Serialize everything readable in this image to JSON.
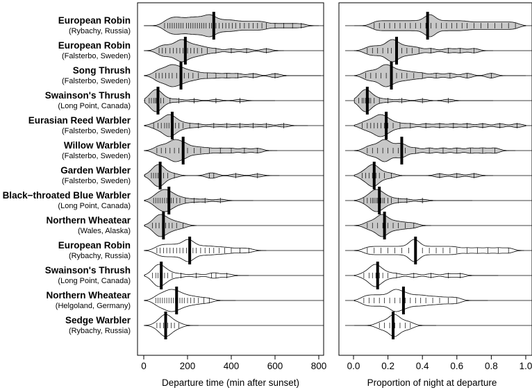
{
  "chart_data": {
    "type": "violin",
    "colors": {
      "filled": "#c8c8c8",
      "open": "#ffffff",
      "line": "#000000"
    },
    "species": [
      {
        "name": "European Robin",
        "location": "(Rybachy, Russia)",
        "fill": "gray",
        "time_median": 320,
        "prop_median": 0.43,
        "time_max": 800,
        "prop_max": 1.0,
        "time_peak": 300,
        "prop_peak": 0.45,
        "time_ticks": [
          95,
          110,
          120,
          130,
          140,
          150,
          160,
          170,
          180,
          195,
          205,
          215,
          225,
          235,
          245,
          255,
          265,
          275,
          285,
          300,
          310,
          330,
          345,
          360,
          375,
          390,
          405,
          420,
          440,
          460,
          480,
          500,
          520,
          540,
          560,
          600,
          640,
          680,
          720
        ],
        "prop_ticks": [
          0.12,
          0.15,
          0.18,
          0.21,
          0.24,
          0.27,
          0.3,
          0.33,
          0.36,
          0.39,
          0.42,
          0.45,
          0.48,
          0.51,
          0.54,
          0.57,
          0.6,
          0.63,
          0.66,
          0.7,
          0.74,
          0.78,
          0.82,
          0.86,
          0.9,
          0.94
        ]
      },
      {
        "name": "European Robin",
        "location": "(Falsterbo, Sweden)",
        "fill": "gray",
        "time_median": 190,
        "prop_median": 0.25,
        "time_max": 640,
        "prop_max": 0.81,
        "time_peak": 170,
        "prop_peak": 0.22,
        "time_ticks": [
          70,
          85,
          100,
          120,
          135,
          150,
          165,
          180,
          200,
          215,
          230,
          245,
          265,
          290,
          330,
          400,
          470,
          560
        ],
        "prop_ticks": [
          0.08,
          0.11,
          0.14,
          0.17,
          0.2,
          0.22,
          0.25,
          0.28,
          0.31,
          0.34,
          0.38,
          0.45,
          0.55,
          0.62,
          0.7
        ]
      },
      {
        "name": "Song Thrush",
        "location": "(Falsterbo, Sweden)",
        "fill": "gray",
        "time_median": 170,
        "prop_median": 0.22,
        "time_max": 810,
        "prop_max": 1.0,
        "time_peak": 130,
        "prop_peak": 0.18,
        "time_ticks": [
          55,
          70,
          85,
          100,
          115,
          130,
          150,
          165,
          185,
          205,
          225,
          250,
          290,
          330,
          380,
          430,
          500,
          600
        ],
        "prop_ticks": [
          0.07,
          0.1,
          0.13,
          0.16,
          0.19,
          0.22,
          0.25,
          0.28,
          0.31,
          0.35,
          0.4,
          0.48,
          0.56,
          0.66,
          0.8
        ]
      },
      {
        "name": "Swainson's Thrush",
        "location": "(Long Point, Canada)",
        "fill": "gray",
        "time_median": 65,
        "prop_median": 0.08,
        "time_max": 600,
        "prop_max": 0.81,
        "time_peak": 50,
        "prop_peak": 0.06,
        "time_ticks": [
          25,
          35,
          45,
          52,
          58,
          64,
          70,
          78,
          90,
          120,
          160,
          230,
          330,
          440
        ],
        "prop_ticks": [
          0.03,
          0.05,
          0.06,
          0.07,
          0.08,
          0.09,
          0.1,
          0.12,
          0.15,
          0.2,
          0.28,
          0.4,
          0.55
        ]
      },
      {
        "name": "Eurasian Reed Warbler",
        "location": "(Falsterbo, Sweden)",
        "fill": "gray",
        "time_median": 130,
        "prop_median": 0.19,
        "time_max": 750,
        "prop_max": 1.0,
        "time_peak": 110,
        "prop_peak": 0.15,
        "time_ticks": [
          45,
          65,
          80,
          95,
          105,
          115,
          125,
          135,
          145,
          160,
          180,
          210,
          250,
          320,
          380,
          440,
          500,
          560,
          640
        ],
        "prop_ticks": [
          0.05,
          0.08,
          0.1,
          0.12,
          0.14,
          0.16,
          0.18,
          0.2,
          0.23,
          0.27,
          0.33,
          0.42,
          0.5,
          0.58,
          0.66,
          0.75,
          0.85,
          0.95
        ]
      },
      {
        "name": "Willow Warbler",
        "location": "(Falsterbo, Sweden)",
        "fill": "gray",
        "time_median": 180,
        "prop_median": 0.28,
        "time_max": 610,
        "prop_max": 0.94,
        "time_peak": 140,
        "prop_peak": 0.18,
        "time_ticks": [
          60,
          80,
          100,
          120,
          140,
          160,
          180,
          200,
          230,
          260,
          300,
          350,
          400,
          460,
          520
        ],
        "prop_ticks": [
          0.08,
          0.11,
          0.14,
          0.17,
          0.2,
          0.23,
          0.26,
          0.3,
          0.36,
          0.44,
          0.52,
          0.6,
          0.68,
          0.75,
          0.82
        ]
      },
      {
        "name": "Garden Warbler",
        "location": "(Falsterbo, Sweden)",
        "fill": "gray",
        "time_median": 75,
        "prop_median": 0.12,
        "time_max": 620,
        "prop_max": 0.81,
        "time_peak": 70,
        "prop_peak": 0.11,
        "time_ticks": [
          35,
          45,
          55,
          65,
          75,
          90,
          110,
          140,
          300,
          320,
          420,
          520
        ],
        "prop_ticks": [
          0.05,
          0.07,
          0.09,
          0.11,
          0.13,
          0.15,
          0.18,
          0.22,
          0.5,
          0.6,
          0.7
        ]
      },
      {
        "name": "Black−throated Blue Warbler",
        "location": "(Long Point, Canada)",
        "fill": "gray",
        "time_median": 115,
        "prop_median": 0.15,
        "time_max": 500,
        "prop_max": 0.69,
        "time_peak": 90,
        "prop_peak": 0.12,
        "time_ticks": [
          45,
          55,
          65,
          75,
          85,
          95,
          105,
          115,
          125,
          135,
          150,
          165,
          190,
          230,
          280,
          350
        ],
        "prop_ticks": [
          0.06,
          0.08,
          0.1,
          0.11,
          0.12,
          0.13,
          0.14,
          0.15,
          0.16,
          0.17,
          0.18,
          0.2,
          0.22,
          0.26,
          0.31,
          0.4
        ]
      },
      {
        "name": "Northern Wheatear",
        "location": "(Wales, Alaska)",
        "fill": "gray",
        "time_median": 90,
        "prop_median": 0.18,
        "time_max": 240,
        "prop_max": 0.45,
        "time_peak": 70,
        "prop_peak": 0.16,
        "time_ticks": [
          40,
          55,
          70,
          85,
          100,
          115,
          130,
          150,
          180
        ],
        "prop_ticks": [
          0.08,
          0.11,
          0.14,
          0.17,
          0.2,
          0.23,
          0.26,
          0.3,
          0.35
        ]
      },
      {
        "name": "European Robin",
        "location": "(Rybachy, Russia)",
        "fill": "white",
        "time_median": 210,
        "prop_median": 0.36,
        "time_max": 560,
        "prop_max": 0.99,
        "time_peak": 200,
        "prop_peak": 0.35,
        "time_ticks": [
          60,
          75,
          90,
          105,
          120,
          135,
          150,
          165,
          180,
          195,
          210,
          225,
          240,
          260,
          280,
          300,
          320,
          345,
          370,
          400,
          440,
          480
        ],
        "prop_ticks": [
          0.08,
          0.12,
          0.16,
          0.2,
          0.24,
          0.28,
          0.32,
          0.36,
          0.4,
          0.44,
          0.48,
          0.52,
          0.56,
          0.6,
          0.66,
          0.72,
          0.78,
          0.84,
          0.9
        ]
      },
      {
        "name": "Swainson's Thrush",
        "location": "(Long Point, Canada)",
        "fill": "white",
        "time_median": 80,
        "prop_median": 0.14,
        "time_max": 480,
        "prop_max": 0.84,
        "time_peak": 60,
        "prop_peak": 0.12,
        "time_ticks": [
          40,
          55,
          65,
          75,
          85,
          95,
          110,
          130,
          170,
          240,
          310,
          330,
          380
        ],
        "prop_ticks": [
          0.06,
          0.09,
          0.11,
          0.13,
          0.15,
          0.17,
          0.2,
          0.25,
          0.35,
          0.45,
          0.55,
          0.62
        ]
      },
      {
        "name": "Northern Wheatear",
        "location": "(Helgoland, Germany)",
        "fill": "white",
        "time_median": 150,
        "prop_median": 0.29,
        "time_max": 420,
        "prop_max": 0.78,
        "time_peak": 120,
        "prop_peak": 0.24,
        "time_ticks": [
          55,
          65,
          75,
          85,
          95,
          105,
          115,
          125,
          135,
          145,
          155,
          165,
          175,
          185,
          200,
          215,
          230,
          250,
          275,
          300
        ],
        "prop_ticks": [
          0.06,
          0.09,
          0.12,
          0.15,
          0.18,
          0.21,
          0.24,
          0.27,
          0.3,
          0.33,
          0.36,
          0.39,
          0.42,
          0.46,
          0.5,
          0.55,
          0.6
        ]
      },
      {
        "name": "Sedge Warbler",
        "location": "(Rybachy, Russia)",
        "fill": "white",
        "time_median": 100,
        "prop_median": 0.23,
        "time_max": 250,
        "prop_max": 0.48,
        "time_peak": 100,
        "prop_peak": 0.24,
        "time_ticks": [
          60,
          75,
          90,
          100,
          110,
          125,
          140,
          160
        ],
        "prop_ticks": [
          0.15,
          0.18,
          0.21,
          0.24,
          0.27,
          0.3,
          0.33
        ]
      }
    ],
    "panels": [
      {
        "xlabel": "Departure time (min after sunset)",
        "xlim": [
          0,
          820
        ],
        "ticks": [
          0,
          200,
          400,
          600,
          800
        ],
        "tick_labels": [
          "0",
          "200",
          "400",
          "600",
          "800"
        ]
      },
      {
        "xlabel": "Proportion of night at departure",
        "xlim": [
          0,
          1.0
        ],
        "ticks": [
          0.0,
          0.2,
          0.4,
          0.6,
          0.8,
          1.0
        ],
        "tick_labels": [
          "0.0",
          "0.2",
          "0.4",
          "0.6",
          "0.8",
          "1.0"
        ]
      }
    ]
  }
}
